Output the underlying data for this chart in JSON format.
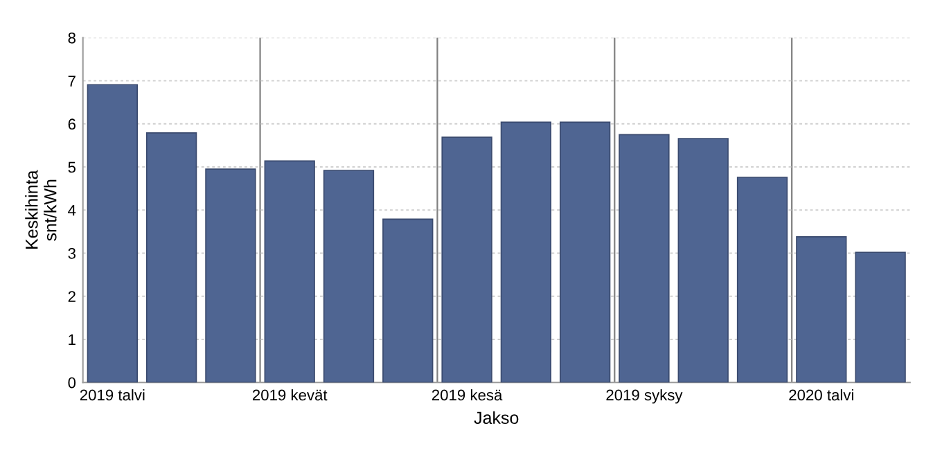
{
  "chart_data": {
    "type": "bar",
    "xlabel": "Jakso",
    "ylabel": "Keskihinta\nsnt/kWh",
    "categories": [
      "2019 talvi",
      null,
      null,
      "2019 kevät",
      null,
      null,
      "2019 kesä",
      null,
      null,
      "2019 syksy",
      null,
      null,
      "2020 talvi",
      null
    ],
    "values": [
      6.91,
      5.79,
      4.95,
      5.14,
      4.92,
      3.79,
      5.69,
      6.04,
      6.04,
      5.75,
      5.66,
      4.76,
      3.38,
      3.02
    ],
    "color": "#4f6592",
    "ylim": [
      0,
      8
    ],
    "yticks": [
      0,
      1,
      2,
      3,
      4,
      5,
      6,
      7,
      8
    ],
    "grid": true
  }
}
